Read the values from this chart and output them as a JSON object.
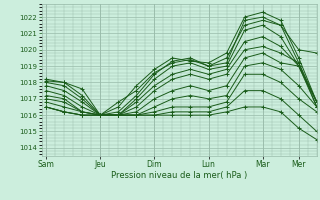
{
  "title": "",
  "xlabel": "Pression niveau de la mer( hPa )",
  "background_color": "#cceedd",
  "plot_bg_color": "#cceedd",
  "grid_color": "#99bbaa",
  "line_color": "#1a5c1a",
  "ylim": [
    1013.5,
    1022.8
  ],
  "yticks": [
    1014,
    1015,
    1016,
    1017,
    1018,
    1019,
    1020,
    1021,
    1022
  ],
  "xtick_labels": [
    "Sam",
    "Jeu",
    "Dim",
    "Lun",
    "Mar",
    "Mer"
  ],
  "xtick_positions": [
    0,
    12,
    24,
    36,
    48,
    56
  ],
  "xlim": [
    -1,
    60
  ],
  "series": [
    {
      "points": [
        [
          0,
          1018.1
        ],
        [
          4,
          1018.0
        ],
        [
          8,
          1017.6
        ],
        [
          12,
          1016.0
        ],
        [
          16,
          1016.8
        ],
        [
          20,
          1017.5
        ],
        [
          24,
          1018.6
        ],
        [
          28,
          1019.2
        ],
        [
          32,
          1019.4
        ],
        [
          36,
          1019.0
        ],
        [
          40,
          1019.5
        ],
        [
          44,
          1021.5
        ],
        [
          48,
          1021.8
        ],
        [
          52,
          1021.5
        ],
        [
          56,
          1020.0
        ],
        [
          60,
          1019.8
        ]
      ]
    },
    {
      "points": [
        [
          0,
          1018.2
        ],
        [
          4,
          1018.0
        ],
        [
          8,
          1017.2
        ],
        [
          12,
          1016.0
        ],
        [
          16,
          1016.5
        ],
        [
          20,
          1017.8
        ],
        [
          24,
          1018.8
        ],
        [
          28,
          1019.5
        ],
        [
          32,
          1019.3
        ],
        [
          36,
          1019.2
        ],
        [
          40,
          1019.8
        ],
        [
          44,
          1022.0
        ],
        [
          48,
          1022.3
        ],
        [
          52,
          1021.8
        ],
        [
          56,
          1019.5
        ],
        [
          60,
          1016.8
        ]
      ]
    },
    {
      "points": [
        [
          0,
          1018.0
        ],
        [
          4,
          1017.8
        ],
        [
          8,
          1017.0
        ],
        [
          12,
          1016.0
        ],
        [
          16,
          1016.2
        ],
        [
          20,
          1017.2
        ],
        [
          24,
          1018.5
        ],
        [
          28,
          1019.3
        ],
        [
          32,
          1019.5
        ],
        [
          36,
          1019.0
        ],
        [
          40,
          1019.2
        ],
        [
          44,
          1021.8
        ],
        [
          48,
          1022.0
        ],
        [
          52,
          1021.5
        ],
        [
          56,
          1019.2
        ],
        [
          60,
          1016.5
        ]
      ]
    },
    {
      "points": [
        [
          0,
          1017.8
        ],
        [
          4,
          1017.5
        ],
        [
          8,
          1016.8
        ],
        [
          12,
          1016.0
        ],
        [
          16,
          1016.0
        ],
        [
          20,
          1017.0
        ],
        [
          24,
          1018.2
        ],
        [
          28,
          1019.0
        ],
        [
          32,
          1019.2
        ],
        [
          36,
          1018.8
        ],
        [
          40,
          1019.0
        ],
        [
          44,
          1021.2
        ],
        [
          48,
          1021.5
        ],
        [
          52,
          1020.8
        ],
        [
          56,
          1019.0
        ],
        [
          60,
          1016.5
        ]
      ]
    },
    {
      "points": [
        [
          0,
          1017.5
        ],
        [
          4,
          1017.2
        ],
        [
          8,
          1016.5
        ],
        [
          12,
          1016.0
        ],
        [
          16,
          1016.0
        ],
        [
          20,
          1016.8
        ],
        [
          24,
          1017.8
        ],
        [
          28,
          1018.5
        ],
        [
          32,
          1018.8
        ],
        [
          36,
          1018.5
        ],
        [
          40,
          1018.8
        ],
        [
          44,
          1020.5
        ],
        [
          48,
          1020.8
        ],
        [
          52,
          1020.2
        ],
        [
          56,
          1019.0
        ],
        [
          60,
          1016.8
        ]
      ]
    },
    {
      "points": [
        [
          0,
          1017.2
        ],
        [
          4,
          1017.0
        ],
        [
          8,
          1016.2
        ],
        [
          12,
          1016.0
        ],
        [
          16,
          1016.0
        ],
        [
          20,
          1016.5
        ],
        [
          24,
          1017.5
        ],
        [
          28,
          1018.2
        ],
        [
          32,
          1018.5
        ],
        [
          36,
          1018.2
        ],
        [
          40,
          1018.5
        ],
        [
          44,
          1020.0
        ],
        [
          48,
          1020.2
        ],
        [
          52,
          1019.8
        ],
        [
          56,
          1019.2
        ],
        [
          60,
          1016.8
        ]
      ]
    },
    {
      "points": [
        [
          0,
          1017.0
        ],
        [
          4,
          1016.8
        ],
        [
          8,
          1016.2
        ],
        [
          12,
          1016.0
        ],
        [
          16,
          1016.0
        ],
        [
          20,
          1016.2
        ],
        [
          24,
          1017.0
        ],
        [
          28,
          1017.5
        ],
        [
          32,
          1017.8
        ],
        [
          36,
          1017.5
        ],
        [
          40,
          1017.8
        ],
        [
          44,
          1019.5
        ],
        [
          48,
          1019.8
        ],
        [
          52,
          1019.2
        ],
        [
          56,
          1019.0
        ],
        [
          60,
          1016.8
        ]
      ]
    },
    {
      "points": [
        [
          0,
          1016.8
        ],
        [
          4,
          1016.5
        ],
        [
          8,
          1016.2
        ],
        [
          12,
          1016.0
        ],
        [
          16,
          1016.0
        ],
        [
          20,
          1016.0
        ],
        [
          24,
          1016.5
        ],
        [
          28,
          1017.0
        ],
        [
          32,
          1017.2
        ],
        [
          36,
          1017.0
        ],
        [
          40,
          1017.2
        ],
        [
          44,
          1019.0
        ],
        [
          48,
          1019.2
        ],
        [
          52,
          1018.8
        ],
        [
          56,
          1017.8
        ],
        [
          60,
          1016.5
        ]
      ]
    },
    {
      "points": [
        [
          0,
          1016.5
        ],
        [
          4,
          1016.2
        ],
        [
          8,
          1016.0
        ],
        [
          12,
          1016.0
        ],
        [
          16,
          1016.0
        ],
        [
          20,
          1016.0
        ],
        [
          24,
          1016.2
        ],
        [
          28,
          1016.5
        ],
        [
          32,
          1016.5
        ],
        [
          36,
          1016.5
        ],
        [
          40,
          1016.8
        ],
        [
          44,
          1018.5
        ],
        [
          48,
          1018.5
        ],
        [
          52,
          1018.0
        ],
        [
          56,
          1017.0
        ],
        [
          60,
          1016.2
        ]
      ]
    },
    {
      "points": [
        [
          0,
          1016.5
        ],
        [
          4,
          1016.2
        ],
        [
          8,
          1016.0
        ],
        [
          12,
          1016.0
        ],
        [
          16,
          1016.0
        ],
        [
          20,
          1016.0
        ],
        [
          24,
          1016.0
        ],
        [
          28,
          1016.2
        ],
        [
          32,
          1016.2
        ],
        [
          36,
          1016.2
        ],
        [
          40,
          1016.5
        ],
        [
          44,
          1017.5
        ],
        [
          48,
          1017.5
        ],
        [
          52,
          1017.0
        ],
        [
          56,
          1016.0
        ],
        [
          60,
          1015.0
        ]
      ]
    },
    {
      "points": [
        [
          0,
          1016.5
        ],
        [
          4,
          1016.2
        ],
        [
          8,
          1016.0
        ],
        [
          12,
          1016.0
        ],
        [
          16,
          1016.0
        ],
        [
          20,
          1016.0
        ],
        [
          24,
          1016.0
        ],
        [
          28,
          1016.0
        ],
        [
          32,
          1016.0
        ],
        [
          36,
          1016.0
        ],
        [
          40,
          1016.2
        ],
        [
          44,
          1016.5
        ],
        [
          48,
          1016.5
        ],
        [
          52,
          1016.2
        ],
        [
          56,
          1015.2
        ],
        [
          60,
          1014.5
        ]
      ]
    }
  ]
}
